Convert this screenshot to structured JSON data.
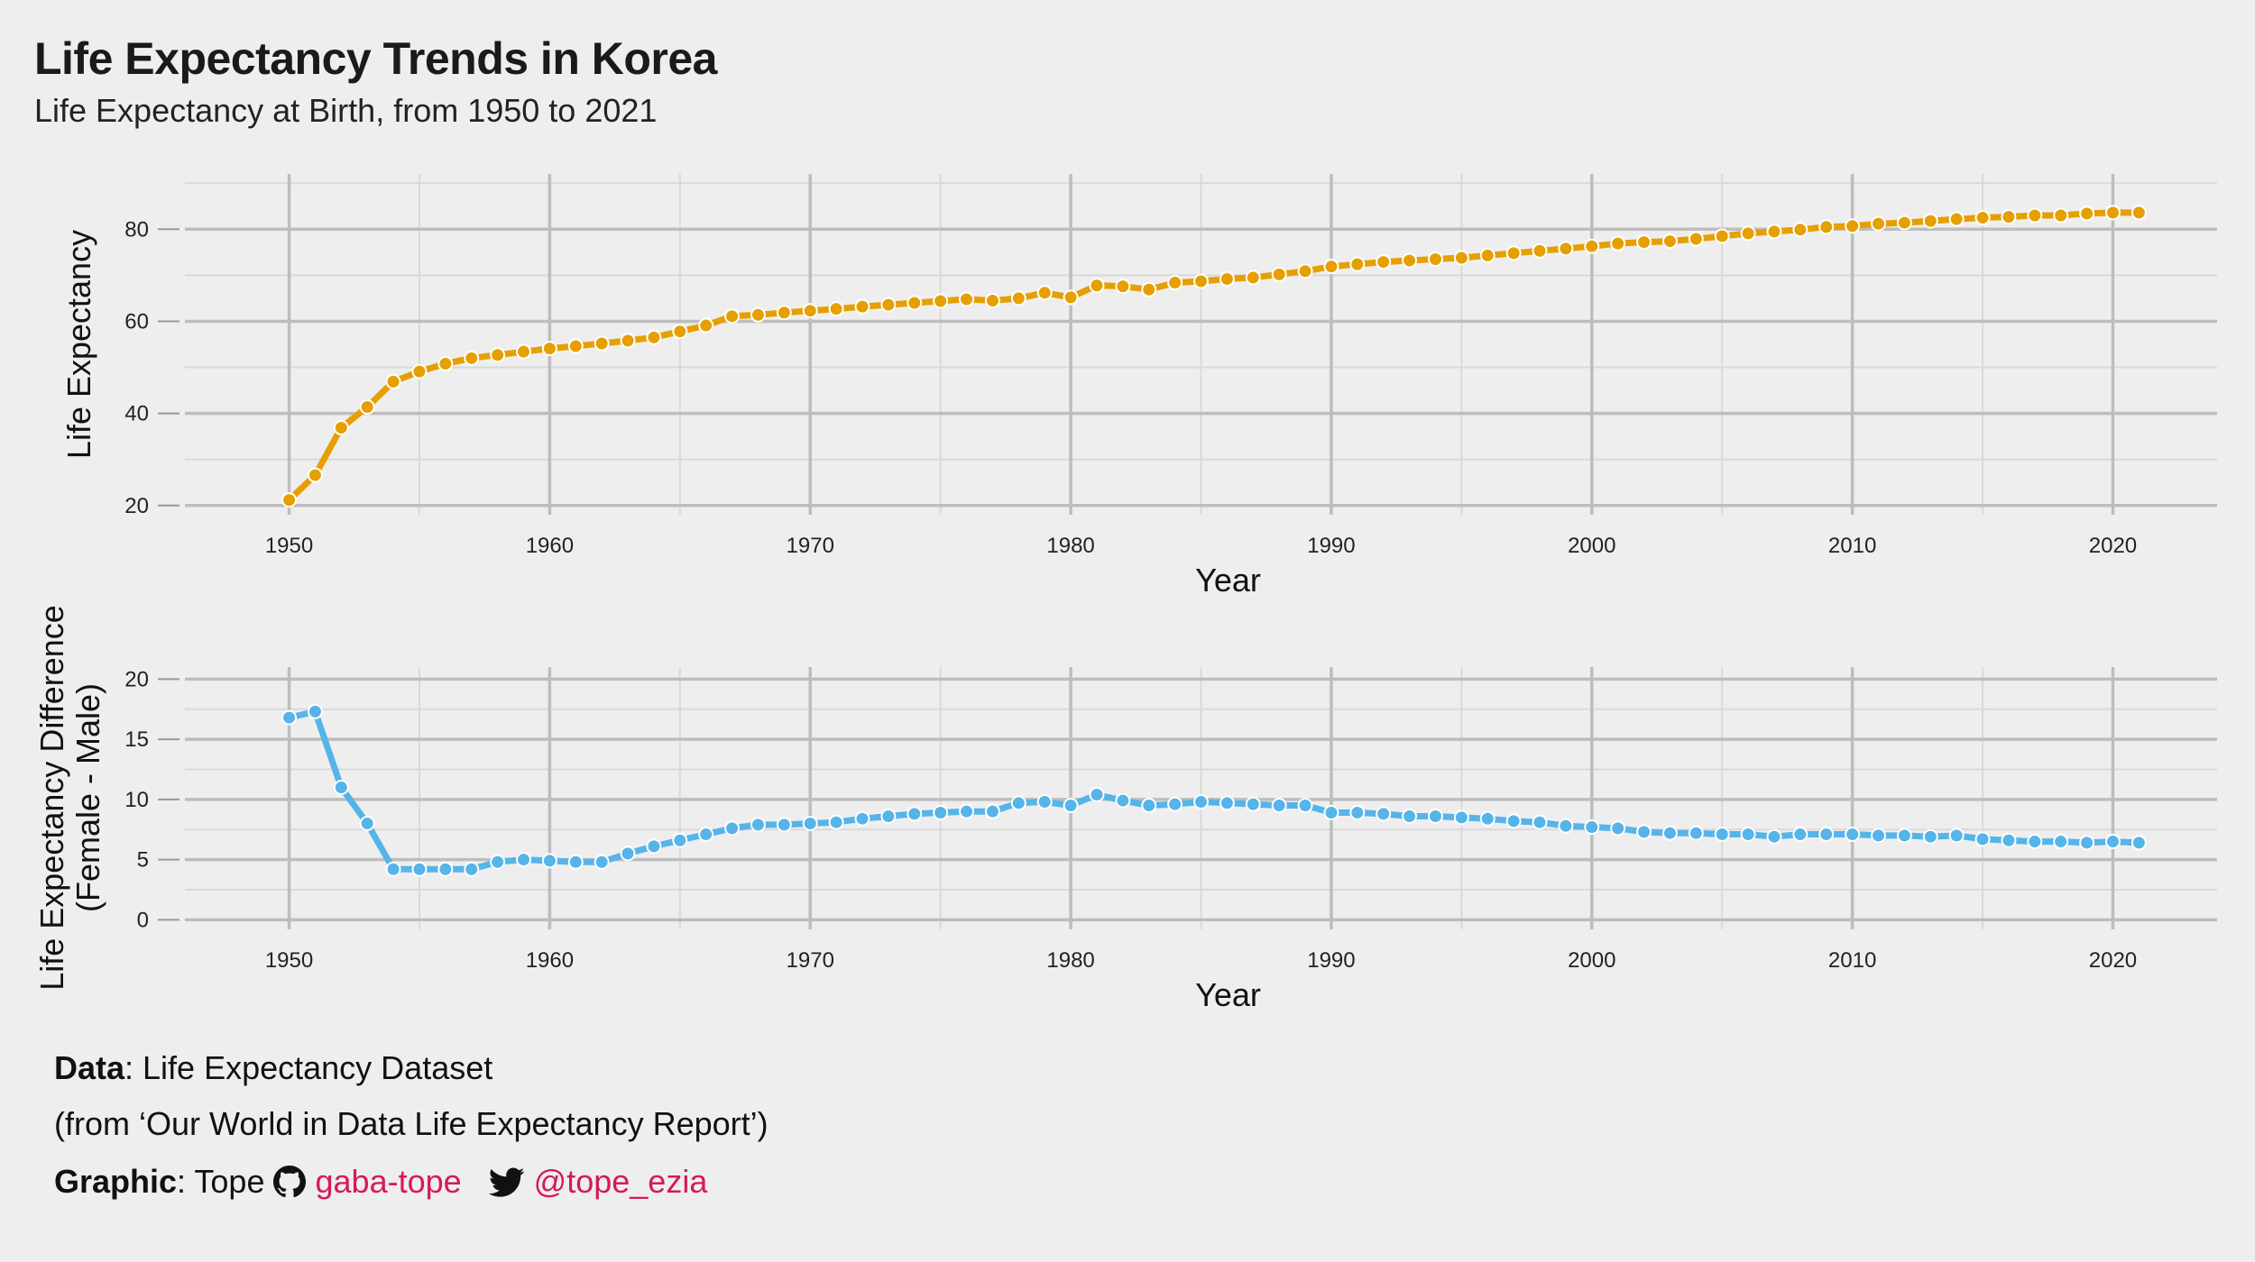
{
  "title": "Life Expectancy Trends in Korea",
  "subtitle": "Life Expectancy at Birth, from 1950 to 2021",
  "chart_data": [
    {
      "type": "line",
      "xlabel": "Year",
      "ylabel": "Life Expectancy",
      "xlim": [
        1946,
        2024
      ],
      "ylim": [
        18,
        92
      ],
      "x_ticks": [
        1950,
        1960,
        1970,
        1980,
        1990,
        2000,
        2010,
        2020
      ],
      "y_ticks": [
        20,
        40,
        60,
        80
      ],
      "grid": true,
      "color": "#E69F00",
      "x": [
        1950,
        1951,
        1952,
        1953,
        1954,
        1955,
        1956,
        1957,
        1958,
        1959,
        1960,
        1961,
        1962,
        1963,
        1964,
        1965,
        1966,
        1967,
        1968,
        1969,
        1970,
        1971,
        1972,
        1973,
        1974,
        1975,
        1976,
        1977,
        1978,
        1979,
        1980,
        1981,
        1982,
        1983,
        1984,
        1985,
        1986,
        1987,
        1988,
        1989,
        1990,
        1991,
        1992,
        1993,
        1994,
        1995,
        1996,
        1997,
        1998,
        1999,
        2000,
        2001,
        2002,
        2003,
        2004,
        2005,
        2006,
        2007,
        2008,
        2009,
        2010,
        2011,
        2012,
        2013,
        2014,
        2015,
        2016,
        2017,
        2018,
        2019,
        2020,
        2021
      ],
      "y": [
        21.2,
        26.6,
        36.9,
        41.4,
        46.9,
        49.1,
        50.8,
        52.0,
        52.7,
        53.4,
        54.1,
        54.6,
        55.2,
        55.8,
        56.5,
        57.8,
        59.1,
        61.1,
        61.4,
        61.9,
        62.3,
        62.7,
        63.2,
        63.6,
        64.0,
        64.4,
        64.8,
        64.5,
        65.0,
        66.2,
        65.2,
        67.8,
        67.6,
        66.9,
        68.4,
        68.7,
        69.2,
        69.5,
        70.2,
        70.9,
        71.9,
        72.4,
        72.9,
        73.2,
        73.5,
        73.8,
        74.3,
        74.8,
        75.3,
        75.8,
        76.3,
        76.9,
        77.2,
        77.4,
        77.9,
        78.5,
        79.1,
        79.5,
        79.9,
        80.5,
        80.7,
        81.2,
        81.4,
        81.8,
        82.2,
        82.5,
        82.7,
        83.0,
        83.0,
        83.4,
        83.6,
        83.6
      ]
    },
    {
      "type": "line",
      "xlabel": "Year",
      "ylabel": "Life Expectancy Difference\n(Female - Male)",
      "xlim": [
        1946,
        2024
      ],
      "ylim": [
        -0.8,
        21
      ],
      "x_ticks": [
        1950,
        1960,
        1970,
        1980,
        1990,
        2000,
        2010,
        2020
      ],
      "y_ticks": [
        0,
        5,
        10,
        15,
        20
      ],
      "grid": true,
      "color": "#56B4E9",
      "x": [
        1950,
        1951,
        1952,
        1953,
        1954,
        1955,
        1956,
        1957,
        1958,
        1959,
        1960,
        1961,
        1962,
        1963,
        1964,
        1965,
        1966,
        1967,
        1968,
        1969,
        1970,
        1971,
        1972,
        1973,
        1974,
        1975,
        1976,
        1977,
        1978,
        1979,
        1980,
        1981,
        1982,
        1983,
        1984,
        1985,
        1986,
        1987,
        1988,
        1989,
        1990,
        1991,
        1992,
        1993,
        1994,
        1995,
        1996,
        1997,
        1998,
        1999,
        2000,
        2001,
        2002,
        2003,
        2004,
        2005,
        2006,
        2007,
        2008,
        2009,
        2010,
        2011,
        2012,
        2013,
        2014,
        2015,
        2016,
        2017,
        2018,
        2019,
        2020,
        2021
      ],
      "y": [
        16.8,
        17.3,
        11.0,
        8.0,
        4.2,
        4.2,
        4.2,
        4.2,
        4.8,
        5.0,
        4.9,
        4.8,
        4.8,
        5.5,
        6.1,
        6.6,
        7.1,
        7.6,
        7.9,
        7.9,
        8.0,
        8.1,
        8.4,
        8.6,
        8.8,
        8.9,
        9.0,
        9.0,
        9.7,
        9.8,
        9.5,
        10.4,
        9.9,
        9.5,
        9.6,
        9.8,
        9.7,
        9.6,
        9.5,
        9.5,
        8.9,
        8.9,
        8.8,
        8.6,
        8.6,
        8.5,
        8.4,
        8.2,
        8.1,
        7.8,
        7.7,
        7.6,
        7.3,
        7.2,
        7.2,
        7.1,
        7.1,
        6.9,
        7.1,
        7.1,
        7.1,
        7.0,
        7.0,
        6.9,
        7.0,
        6.7,
        6.6,
        6.5,
        6.5,
        6.4,
        6.5,
        6.4
      ]
    }
  ],
  "caption": {
    "data_label": "Data",
    "data_text": ": Life Expectancy Dataset",
    "source_text": "(from ‘Our World in Data Life Expectancy Report’)",
    "graphic_label": "Graphic",
    "graphic_text": ": Tope",
    "github_handle": "gaba-tope",
    "twitter_handle": "@tope_ezia",
    "handle_color": "#d6185e",
    "icons": [
      "github-icon",
      "twitter-icon"
    ]
  }
}
